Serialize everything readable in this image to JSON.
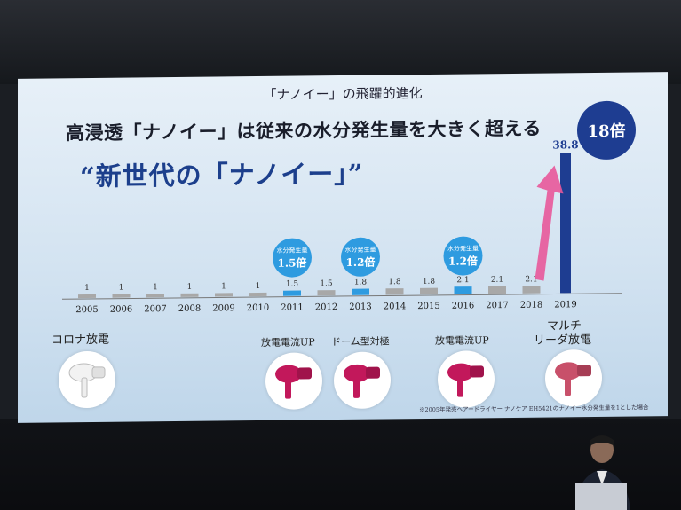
{
  "slide": {
    "title": "「ナノイー」の飛躍的進化",
    "headline": "高浸透「ナノイー」は従来の水分発生量を大きく超える",
    "phrase": "“新世代の「ナノイー」”",
    "multiplier_badge": "18倍",
    "footnote": "※2005年発売ヘアードライヤー ナノケア EH5421のナノイー水分発生量を1とした場合"
  },
  "chart_data": {
    "type": "bar",
    "categories": [
      "2005",
      "2006",
      "2007",
      "2008",
      "2009",
      "2010",
      "2011",
      "2012",
      "2013",
      "2014",
      "2015",
      "2016",
      "2017",
      "2018",
      "2019"
    ],
    "values": [
      1,
      1,
      1,
      1,
      1,
      1,
      1.5,
      1.5,
      1.8,
      1.8,
      1.8,
      2.1,
      2.1,
      2.1,
      38.8
    ],
    "value_labels": [
      "1",
      "1",
      "1",
      "1",
      "1",
      "1",
      "1.5",
      "1.5",
      "1.8",
      "1.8",
      "1.8",
      "2.1",
      "2.1",
      "2.1",
      "38.8"
    ],
    "highlight_years": [
      "2011",
      "2013",
      "2016"
    ],
    "callouts": [
      {
        "year": "2011",
        "line1": "水分発生量",
        "line2": "1.5倍"
      },
      {
        "year": "2013",
        "line1": "水分発生量",
        "line2": "1.2倍"
      },
      {
        "year": "2016",
        "line1": "水分発生量",
        "line2": "1.2倍"
      }
    ],
    "colors": {
      "normal": "#a8a8a8",
      "highlight": "#2e9be0",
      "final": "#1e3d91",
      "arrow": "#e8589a"
    }
  },
  "products": [
    {
      "year": "2005",
      "label": "コロナ放電",
      "color": "#e8e8e8"
    },
    {
      "year": "2011",
      "label": "放電電流UP",
      "color": "#c2185b"
    },
    {
      "year": "2013",
      "label": "ドーム型対極",
      "color": "#c2185b"
    },
    {
      "year": "2016",
      "label": "放電電流UP",
      "color": "#c2185b"
    },
    {
      "year": "2019",
      "label_line1": "マルチ",
      "label_line2": "リーダ放電",
      "color": "#c8506a"
    }
  ]
}
